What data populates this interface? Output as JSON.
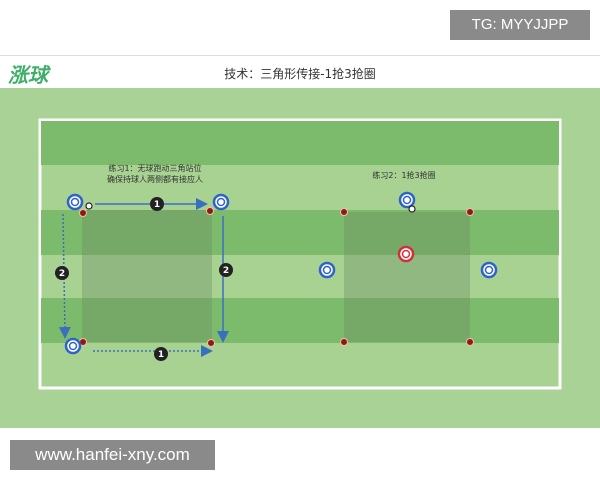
{
  "watermark_top": "TG: MYYJJPP",
  "watermark_bottom": "www.hanfei-xny.com",
  "logo": "涨球",
  "title": "技术：三角形传接-1抢3抢圈",
  "drill1": {
    "label_line1": "练习1：无球跑动三角站位",
    "label_line2": "确保持球人两侧都有接应人",
    "step_labels": [
      "1",
      "1",
      "2",
      "2"
    ]
  },
  "drill2": {
    "label": "练习2：1抢3抢圈"
  },
  "colors": {
    "player": "#2f63c8",
    "defender": "#d0303a",
    "cone": "#8b1a1a",
    "arrow": "#3a6fc0",
    "stripe_dark": "#7dbb6c",
    "stripe_light": "#a7d291"
  }
}
